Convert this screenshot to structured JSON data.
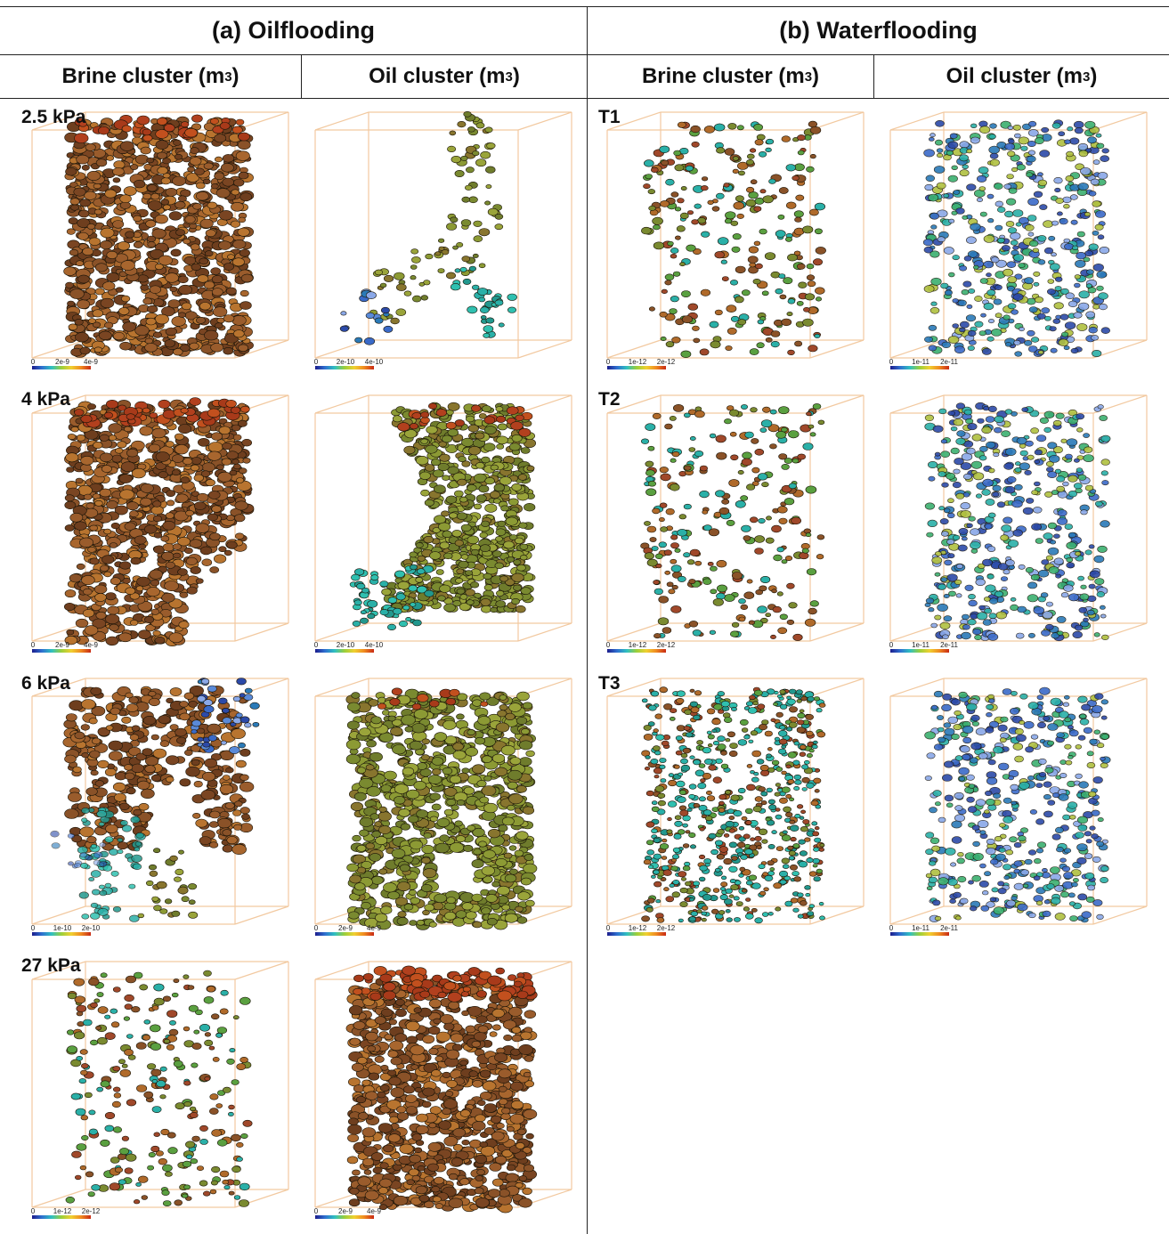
{
  "headers": {
    "a": "(a) Oilflooding",
    "b": "(b) Waterflooding"
  },
  "columns": [
    {
      "label": "Brine cluster (m",
      "sup": "3",
      "close": ")"
    },
    {
      "label": "Oil cluster (m",
      "sup": "3",
      "close": ")"
    },
    {
      "label": "Brine cluster (m",
      "sup": "3",
      "close": ")"
    },
    {
      "label": "Oil cluster (m",
      "sup": "3",
      "close": ")"
    }
  ],
  "row_labels": {
    "oil": [
      "2.5 kPa",
      "4 kPa",
      "6 kPa",
      "27 kPa"
    ],
    "water": [
      "T1",
      "T2",
      "T3"
    ]
  },
  "colors": {
    "brown": "#8a5228",
    "olive": "#7a8a30",
    "teal": "#2ab0a8",
    "blue": "#3a6ac8",
    "box": "#f2c9a0"
  },
  "panels": {
    "oil": [
      [
        {
          "style": "dense-brown",
          "cbar": [
            "0",
            "2e-9",
            "4e-9"
          ]
        },
        {
          "style": "branch-olive",
          "cbar": [
            "0",
            "2e-10",
            "4e-10"
          ]
        }
      ],
      [
        {
          "style": "dense-brown-ragged",
          "cbar": [
            "0",
            "2e-9",
            "4e-9"
          ]
        },
        {
          "style": "hourglass-olive",
          "cbar": [
            "0",
            "2e-10",
            "4e-10"
          ]
        }
      ],
      [
        {
          "style": "fragmented-mixed",
          "cbar": [
            "0",
            "1e-10",
            "2e-10"
          ]
        },
        {
          "style": "dense-olive",
          "cbar": [
            "0",
            "2e-9",
            "4e-9"
          ]
        }
      ],
      [
        {
          "style": "sparse-scatter",
          "cbar": [
            "0",
            "1e-12",
            "2e-12"
          ]
        },
        {
          "style": "dense-brown-column",
          "cbar": [
            "0",
            "2e-9",
            "4e-9"
          ]
        }
      ]
    ],
    "water": [
      [
        {
          "style": "sparse-scatter",
          "cbar": [
            "0",
            "1e-12",
            "2e-12"
          ]
        },
        {
          "style": "blue-scatter",
          "cbar": [
            "0",
            "1e-11",
            "2e-11"
          ]
        }
      ],
      [
        {
          "style": "sparse-scatter",
          "cbar": [
            "0",
            "1e-12",
            "2e-12"
          ]
        },
        {
          "style": "blue-scatter",
          "cbar": [
            "0",
            "1e-11",
            "2e-11"
          ]
        }
      ],
      [
        {
          "style": "dense-scatter",
          "cbar": [
            "0",
            "1e-12",
            "2e-12"
          ]
        },
        {
          "style": "blue-scatter",
          "cbar": [
            "0",
            "1e-11",
            "2e-11"
          ]
        }
      ]
    ]
  }
}
